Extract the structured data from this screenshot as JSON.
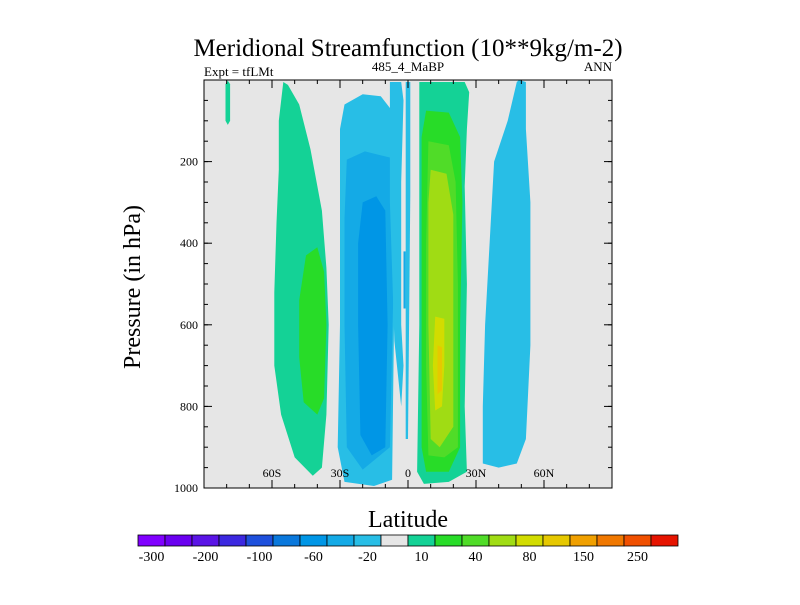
{
  "chart_data": {
    "type": "contour",
    "title": "Meridional Streamfunction (10**9kg/m-2)",
    "subtitle_left": "Expt = tfLMt",
    "subtitle_center": "485_4_MaBP",
    "subtitle_right": "ANN",
    "xlabel": "Latitude",
    "ylabel": "Pressure (in hPa)",
    "xlim": [
      -90,
      90
    ],
    "ylim": [
      0,
      1000
    ],
    "y_inverted": true,
    "x_ticks": [
      {
        "value": -60,
        "label": "60S"
      },
      {
        "value": -30,
        "label": "30S"
      },
      {
        "value": 0,
        "label": "0"
      },
      {
        "value": 30,
        "label": "30N"
      },
      {
        "value": 60,
        "label": "60N"
      }
    ],
    "y_ticks": [
      {
        "value": 200,
        "label": "200"
      },
      {
        "value": 400,
        "label": "400"
      },
      {
        "value": 600,
        "label": "600"
      },
      {
        "value": 800,
        "label": "800"
      },
      {
        "value": 1000,
        "label": "1000"
      }
    ],
    "y_minor_step": 50,
    "x_minor_step": 10,
    "background_color": "#e6e6e6",
    "colorbar": {
      "levels": [
        -300,
        -250,
        -200,
        -150,
        -100,
        -80,
        -60,
        -40,
        -20,
        -10,
        10,
        20,
        40,
        60,
        80,
        100,
        150,
        200,
        250,
        300
      ],
      "labeled_levels": [
        -300,
        -200,
        -100,
        -60,
        -20,
        10,
        40,
        80,
        150,
        250
      ],
      "colors": [
        "#8000ff",
        "#6a00f0",
        "#5a14e6",
        "#3c28e0",
        "#1e50dc",
        "#0a78dc",
        "#0096e6",
        "#14aae6",
        "#28bee6",
        "#e6e6e6",
        "#14d296",
        "#28dc28",
        "#50dc28",
        "#a0dc14",
        "#d2dc00",
        "#e6c800",
        "#f0a000",
        "#f07800",
        "#f05000",
        "#e61400"
      ]
    },
    "regions": [
      {
        "name": "nh-high-thin",
        "level": 10,
        "color": "#14d296",
        "points": [
          [
            -79.5,
            2
          ],
          [
            -78.5,
            10
          ],
          [
            -78.5,
            100
          ],
          [
            -79.5,
            110
          ],
          [
            -80.5,
            100
          ],
          [
            -80.5,
            10
          ]
        ]
      },
      {
        "name": "sh-ferrel-outer",
        "level": 10,
        "color": "#14d296",
        "points": [
          [
            -55,
            5
          ],
          [
            -53,
            12
          ],
          [
            -48,
            60
          ],
          [
            -43,
            170
          ],
          [
            -38,
            320
          ],
          [
            -36,
            460
          ],
          [
            -35,
            600
          ],
          [
            -36,
            820
          ],
          [
            -38,
            950
          ],
          [
            -42,
            970
          ],
          [
            -50,
            925
          ],
          [
            -56,
            820
          ],
          [
            -59,
            700
          ],
          [
            -59,
            520
          ],
          [
            -58,
            350
          ],
          [
            -57,
            220
          ],
          [
            -57,
            100
          ]
        ]
      },
      {
        "name": "sh-ferrel-inner",
        "level": 20,
        "color": "#28dc28",
        "points": [
          [
            -45,
            430
          ],
          [
            -40,
            410
          ],
          [
            -37,
            470
          ],
          [
            -36,
            600
          ],
          [
            -37,
            780
          ],
          [
            -40,
            820
          ],
          [
            -46,
            790
          ],
          [
            -48,
            680
          ],
          [
            -48,
            540
          ]
        ]
      },
      {
        "name": "sh-hadley-outer",
        "level": -10,
        "color": "#28bee6",
        "points": [
          [
            -28,
            60
          ],
          [
            -20,
            35
          ],
          [
            -12,
            40
          ],
          [
            -5,
            90
          ],
          [
            -4,
            200
          ],
          [
            -6,
            520
          ],
          [
            -7,
            980
          ],
          [
            -15,
            995
          ],
          [
            -28,
            985
          ],
          [
            -31,
            900
          ],
          [
            -30,
            600
          ],
          [
            -30,
            300
          ],
          [
            -30,
            120
          ]
        ]
      },
      {
        "name": "sh-hadley-mid",
        "level": -20,
        "color": "#14aae6",
        "points": [
          [
            -27,
            195
          ],
          [
            -19,
            175
          ],
          [
            -8,
            190
          ],
          [
            -6,
            400
          ],
          [
            -8,
            900
          ],
          [
            -20,
            955
          ],
          [
            -27,
            900
          ],
          [
            -28,
            600
          ],
          [
            -28,
            340
          ]
        ]
      },
      {
        "name": "sh-hadley-core",
        "level": -40,
        "color": "#0096e6",
        "points": [
          [
            -20,
            300
          ],
          [
            -14,
            285
          ],
          [
            -10,
            320
          ],
          [
            -9,
            600
          ],
          [
            -10,
            900
          ],
          [
            -16,
            920
          ],
          [
            -21,
            870
          ],
          [
            -22,
            600
          ],
          [
            -22,
            400
          ]
        ]
      },
      {
        "name": "sh-hadley-inner-cyan",
        "level": 10,
        "color": "#28bee6",
        "points": [
          [
            -8,
            5
          ],
          [
            -3,
            5
          ],
          [
            -2,
            50
          ],
          [
            -3,
            250
          ],
          [
            -3,
            600
          ],
          [
            -2,
            700
          ],
          [
            -3,
            800
          ],
          [
            -6,
            640
          ],
          [
            -8,
            300
          ]
        ]
      },
      {
        "name": "eq-sliver",
        "level": -10,
        "color": "#28bee6",
        "points": [
          [
            -1,
            5
          ],
          [
            1,
            5
          ],
          [
            1,
            280
          ],
          [
            0,
            880
          ],
          [
            -1,
            880
          ]
        ]
      },
      {
        "name": "sh-hadley-eq-pocket",
        "level": -20,
        "color": "#14aae6",
        "points": [
          [
            -2,
            420
          ],
          [
            -1,
            420
          ],
          [
            -1,
            560
          ],
          [
            -2,
            560
          ]
        ]
      },
      {
        "name": "nh-hadley-outer",
        "level": 10,
        "color": "#14d296",
        "points": [
          [
            5,
            5
          ],
          [
            25,
            5
          ],
          [
            27,
            30
          ],
          [
            26,
            120
          ],
          [
            25,
            260
          ],
          [
            26,
            500
          ],
          [
            25,
            800
          ],
          [
            26,
            960
          ],
          [
            18,
            985
          ],
          [
            7,
            990
          ],
          [
            4,
            960
          ],
          [
            5,
            600
          ],
          [
            5,
            200
          ]
        ]
      },
      {
        "name": "nh-hadley-20",
        "level": 20,
        "color": "#28dc28",
        "points": [
          [
            8,
            75
          ],
          [
            18,
            80
          ],
          [
            23,
            140
          ],
          [
            24,
            300
          ],
          [
            23,
            600
          ],
          [
            23,
            900
          ],
          [
            18,
            960
          ],
          [
            8,
            960
          ],
          [
            6,
            900
          ],
          [
            6,
            600
          ],
          [
            6,
            300
          ],
          [
            6,
            140
          ]
        ]
      },
      {
        "name": "nh-hadley-40",
        "level": 40,
        "color": "#50dc28",
        "points": [
          [
            9,
            150
          ],
          [
            18,
            160
          ],
          [
            21,
            250
          ],
          [
            22,
            500
          ],
          [
            22,
            900
          ],
          [
            16,
            925
          ],
          [
            9,
            920
          ],
          [
            8,
            700
          ],
          [
            8,
            400
          ]
        ]
      },
      {
        "name": "nh-hadley-60",
        "level": 60,
        "color": "#a0dc14",
        "points": [
          [
            10,
            220
          ],
          [
            17,
            230
          ],
          [
            20,
            330
          ],
          [
            20,
            600
          ],
          [
            20,
            850
          ],
          [
            14,
            900
          ],
          [
            10,
            880
          ],
          [
            9,
            600
          ],
          [
            9,
            300
          ]
        ]
      },
      {
        "name": "nh-hadley-80",
        "level": 80,
        "color": "#d2dc00",
        "points": [
          [
            12,
            580
          ],
          [
            16,
            585
          ],
          [
            16,
            700
          ],
          [
            15,
            800
          ],
          [
            12,
            810
          ],
          [
            11,
            700
          ]
        ]
      },
      {
        "name": "nh-hadley-80-peak",
        "level": 100,
        "color": "#e6c800",
        "points": [
          [
            13,
            650
          ],
          [
            15,
            655
          ],
          [
            15,
            760
          ],
          [
            13,
            770
          ]
        ]
      },
      {
        "name": "nh-ferrel",
        "level": -10,
        "color": "#28bee6",
        "points": [
          [
            48,
            5
          ],
          [
            49,
            0
          ],
          [
            52,
            5
          ],
          [
            52,
            120
          ],
          [
            54,
            300
          ],
          [
            54,
            650
          ],
          [
            52,
            880
          ],
          [
            48,
            940
          ],
          [
            40,
            950
          ],
          [
            33,
            940
          ],
          [
            33,
            800
          ],
          [
            34,
            600
          ],
          [
            36,
            400
          ],
          [
            38,
            200
          ],
          [
            44,
            100
          ]
        ]
      }
    ]
  }
}
